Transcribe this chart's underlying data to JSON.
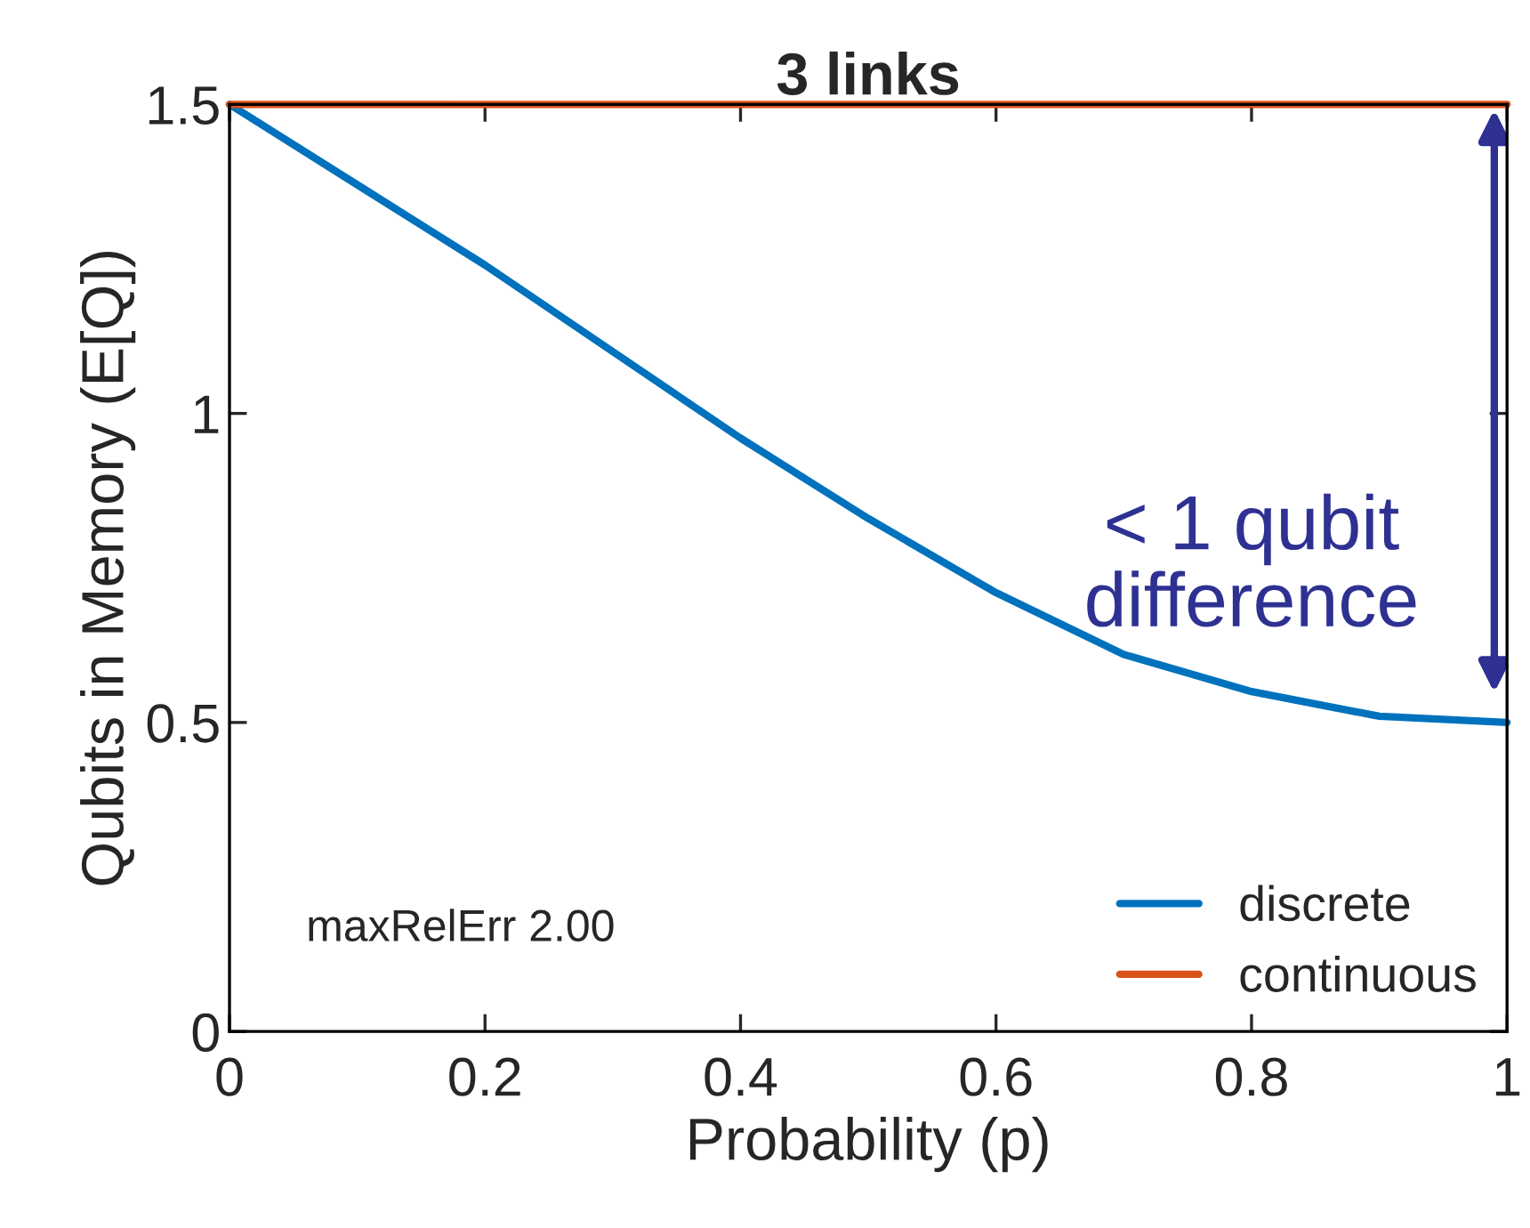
{
  "chart_data": {
    "type": "line",
    "title": "3 links",
    "xlabel": "Probability (p)",
    "ylabel": "Qubits in Memory (E[Q])",
    "x": [
      0,
      0.1,
      0.2,
      0.3,
      0.4,
      0.5,
      0.6,
      0.7,
      0.8,
      0.9,
      1.0
    ],
    "series": [
      {
        "name": "discrete",
        "color": "#0072bd",
        "values": [
          1.5,
          1.37,
          1.24,
          1.1,
          0.96,
          0.83,
          0.71,
          0.61,
          0.55,
          0.51,
          0.5
        ]
      },
      {
        "name": "continuous",
        "color": "#d95319",
        "values": [
          1.5,
          1.5,
          1.5,
          1.5,
          1.5,
          1.5,
          1.5,
          1.5,
          1.5,
          1.5,
          1.5
        ]
      }
    ],
    "xlim": [
      0,
      1
    ],
    "ylim": [
      0,
      1.5
    ],
    "xticks": [
      0,
      0.2,
      0.4,
      0.6,
      0.8,
      1
    ],
    "yticks": [
      0,
      0.5,
      1,
      1.5
    ],
    "grid": false,
    "legend": "bottom right",
    "marker": "none",
    "line_style": "solid",
    "annotations": [
      "< 1 qubit difference",
      "maxRelErr 2.00"
    ]
  }
}
